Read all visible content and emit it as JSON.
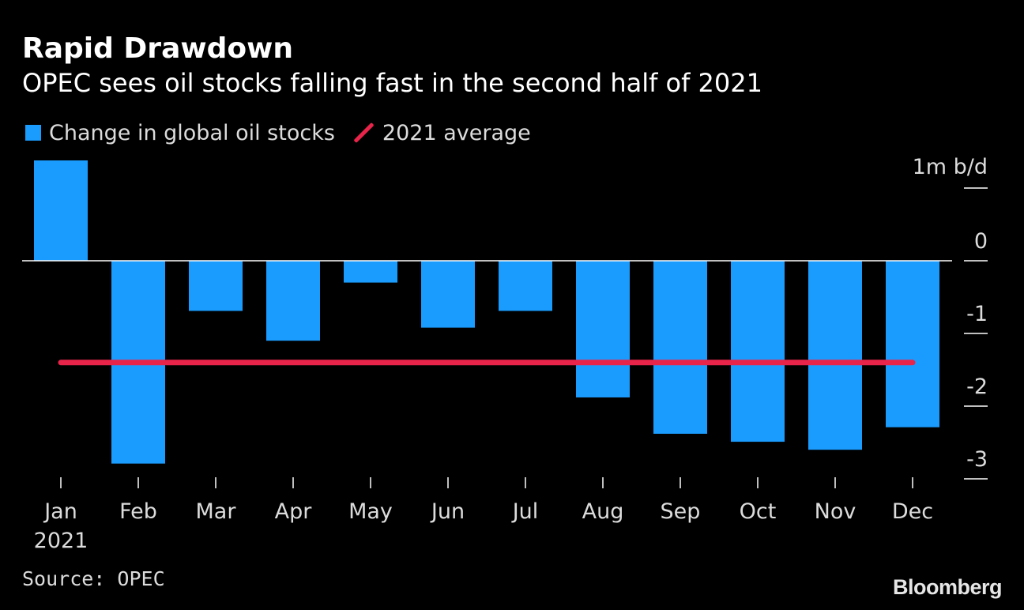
{
  "chart_data": {
    "type": "bar",
    "title": "Rapid Drawdown",
    "subtitle": "OPEC sees oil stocks falling fast in the second half of 2021",
    "unit_label": "1m b/d",
    "categories": [
      "Jan",
      "Feb",
      "Mar",
      "Apr",
      "May",
      "Jun",
      "Jul",
      "Aug",
      "Sep",
      "Oct",
      "Nov",
      "Dec"
    ],
    "first_category_year": "2021",
    "series": [
      {
        "name": "Change in global oil stocks",
        "color": "#1a9cff",
        "values": [
          1.38,
          -2.79,
          -0.69,
          -1.1,
          -0.3,
          -0.92,
          -0.69,
          -1.88,
          -2.38,
          -2.49,
          -2.6,
          -2.29
        ]
      }
    ],
    "reference_line": {
      "name": "2021 average",
      "color": "#e8244a",
      "value": -1.4
    },
    "y_ticks": [
      1,
      0,
      -1,
      -2,
      -3
    ],
    "y_tick_labels": [
      "",
      "0",
      "-1",
      "-2",
      "-3"
    ],
    "ylim": [
      -3,
      1.4
    ]
  },
  "legend": {
    "bars_label": "Change in global oil stocks",
    "line_label": "2021 average"
  },
  "footer": {
    "source": "Source: OPEC",
    "brand": "Bloomberg"
  }
}
